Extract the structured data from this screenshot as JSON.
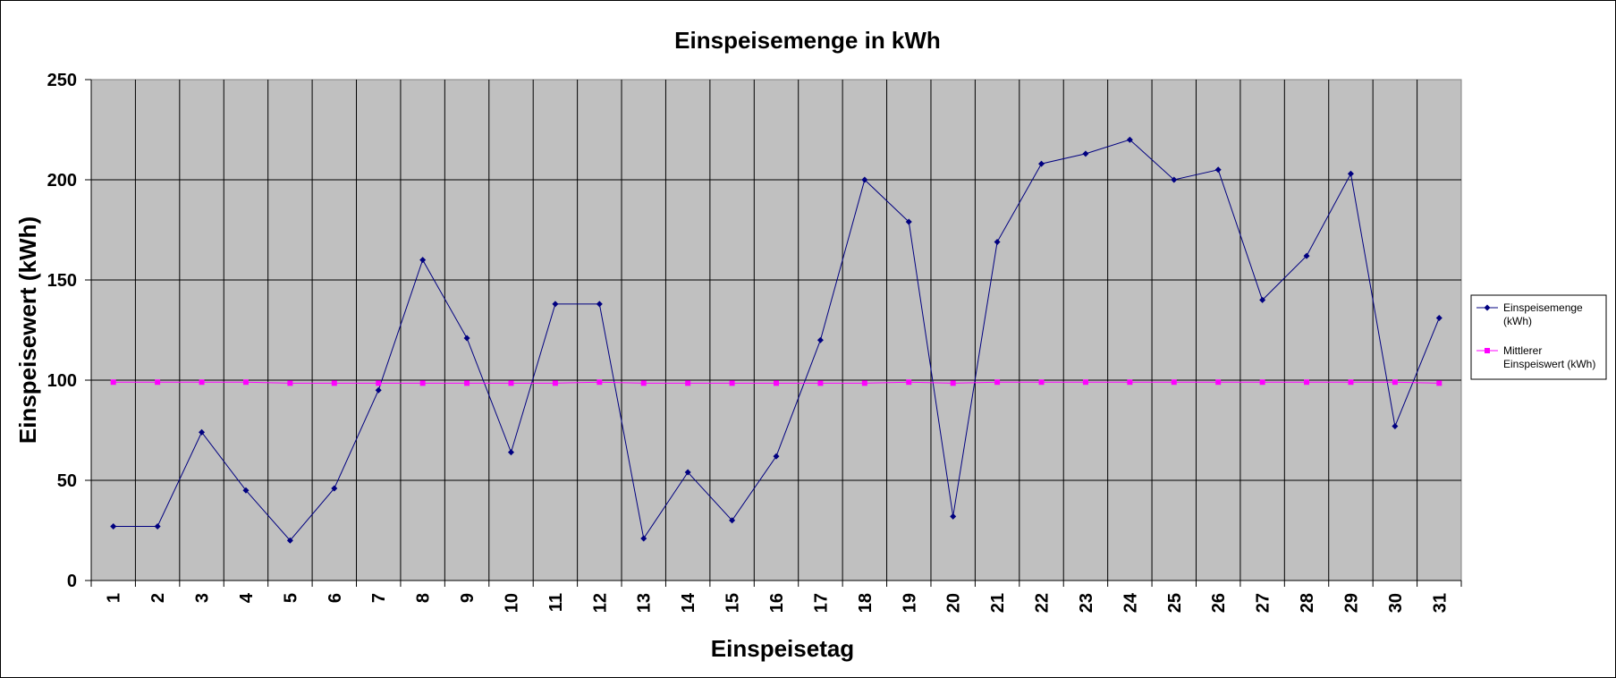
{
  "chart_data": {
    "type": "line",
    "title": "Einspeisemenge in kWh",
    "xlabel": "Einspeisetag",
    "ylabel": "Einspeisewert  (kWh)",
    "categories": [
      "1",
      "2",
      "3",
      "4",
      "5",
      "6",
      "7",
      "8",
      "9",
      "10",
      "11",
      "12",
      "13",
      "14",
      "15",
      "16",
      "17",
      "18",
      "19",
      "20",
      "21",
      "22",
      "23",
      "24",
      "25",
      "26",
      "27",
      "28",
      "29",
      "30",
      "31"
    ],
    "ylim": [
      0,
      250
    ],
    "yticks": [
      "0",
      "50",
      "100",
      "150",
      "200",
      "250"
    ],
    "grid": true,
    "legend_position": "right",
    "series": [
      {
        "name_lines": [
          "Einspeisemenge",
          "(kWh)"
        ],
        "color": "#000080",
        "marker": "diamond",
        "values": [
          27,
          27,
          74,
          45,
          20,
          46,
          95,
          160,
          121,
          64,
          138,
          138,
          21,
          54,
          30,
          62,
          120,
          200,
          179,
          32,
          169,
          208,
          213,
          220,
          200,
          205,
          140,
          162,
          203,
          77,
          131
        ]
      },
      {
        "name_lines": [
          "Mittlerer",
          "Einspeiswert (kWh)"
        ],
        "color": "#ff00ff",
        "marker": "square",
        "values": [
          99,
          99,
          99,
          99,
          98.5,
          98.5,
          98.5,
          98.5,
          98.5,
          98.5,
          98.5,
          99,
          98.5,
          98.5,
          98.5,
          98.5,
          98.5,
          98.5,
          99,
          98.5,
          99,
          99,
          99,
          99,
          99,
          99,
          99,
          99,
          99,
          99,
          98.5
        ]
      }
    ]
  }
}
